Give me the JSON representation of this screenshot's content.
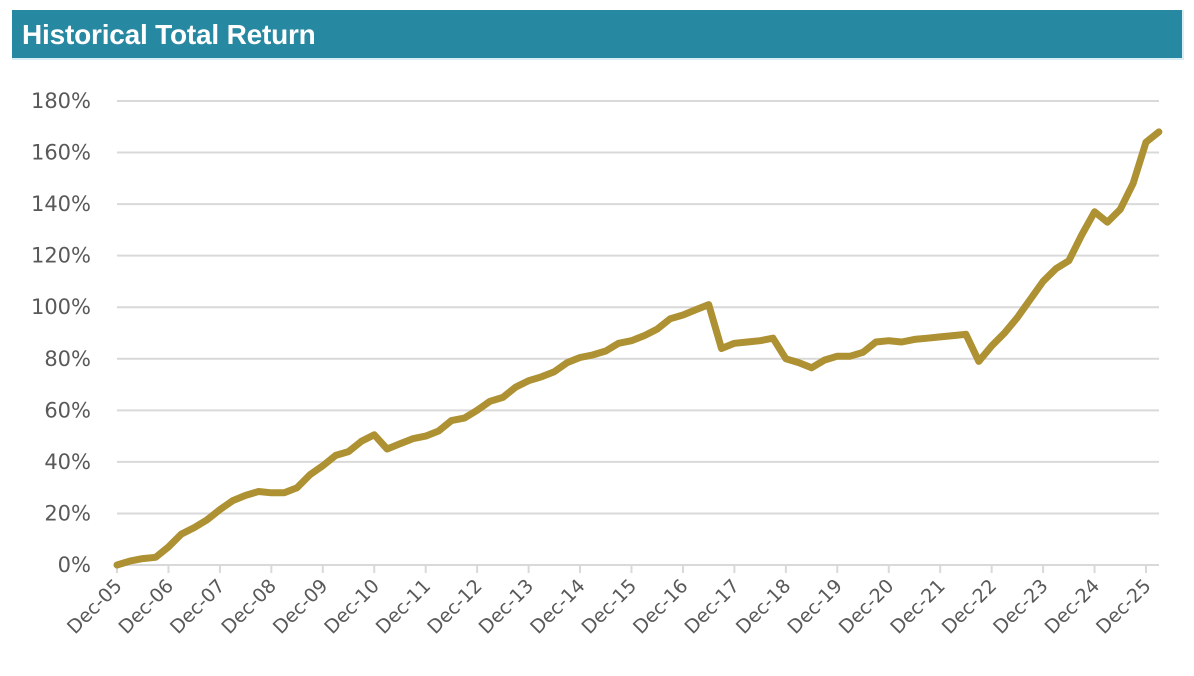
{
  "header": {
    "title": "Historical Total Return",
    "background_color": "#2788a2",
    "text_color": "#ffffff"
  },
  "colors": {
    "line": "#ad9132",
    "grid": "#d9d9d9",
    "axis_text": "#595959"
  },
  "chart_data": {
    "type": "line",
    "title": "Historical Total Return",
    "xlabel": "",
    "ylabel": "",
    "ylim": [
      0,
      180
    ],
    "y_ticks": [
      0,
      20,
      40,
      60,
      80,
      100,
      120,
      140,
      160,
      180
    ],
    "y_tick_labels": [
      "0%",
      "20%",
      "40%",
      "60%",
      "80%",
      "100%",
      "120%",
      "140%",
      "160%",
      "180%"
    ],
    "x_tick_labels": [
      "Dec-05",
      "Dec-06",
      "Dec-07",
      "Dec-08",
      "Dec-09",
      "Dec-10",
      "Dec-11",
      "Dec-12",
      "Dec-13",
      "Dec-14",
      "Dec-15",
      "Dec-16",
      "Dec-17",
      "Dec-18",
      "Dec-19",
      "Dec-20",
      "Dec-21",
      "Dec-22",
      "Dec-23",
      "Dec-24",
      "Dec-25"
    ],
    "grid": true,
    "legend": null,
    "x_unit": "quarters since Dec-05",
    "series": [
      {
        "name": "Historical Total Return",
        "x": [
          0,
          1,
          2,
          3,
          4,
          5,
          6,
          7,
          8,
          9,
          10,
          11,
          12,
          13,
          14,
          15,
          16,
          17,
          18,
          19,
          20,
          21,
          22,
          23,
          24,
          25,
          26,
          27,
          28,
          29,
          30,
          31,
          32,
          33,
          34,
          35,
          36,
          37,
          38,
          39,
          40,
          41,
          42,
          43,
          44,
          45,
          46,
          47,
          48,
          49,
          50,
          51,
          52,
          53,
          54,
          55,
          56,
          57,
          58,
          59,
          60,
          61,
          62,
          63,
          64,
          65,
          66,
          67,
          68,
          69,
          70,
          71,
          72,
          73,
          74,
          75,
          76,
          77,
          78,
          79,
          80,
          81
        ],
        "values": [
          0,
          1.5,
          2.5,
          3,
          7,
          12,
          14.5,
          17.5,
          21.5,
          25,
          27,
          28.5,
          28,
          28,
          30,
          35,
          38.5,
          42.5,
          44,
          48,
          50.5,
          45,
          47,
          49,
          50,
          52,
          56,
          57,
          60,
          63.5,
          65,
          69,
          71.5,
          73,
          75,
          78.5,
          80.5,
          81.5,
          83,
          86,
          87,
          89,
          91.5,
          95.5,
          97,
          99,
          101,
          84,
          86,
          86.5,
          87,
          88,
          80,
          78.5,
          76.5,
          79.5,
          81,
          81,
          82.5,
          86.5,
          87,
          86.5,
          87.5,
          88,
          88.5,
          89,
          89.5,
          79,
          85,
          90,
          96,
          103,
          110,
          115,
          118,
          128,
          137,
          133,
          138,
          148,
          164,
          168
        ]
      }
    ],
    "annotations": []
  }
}
